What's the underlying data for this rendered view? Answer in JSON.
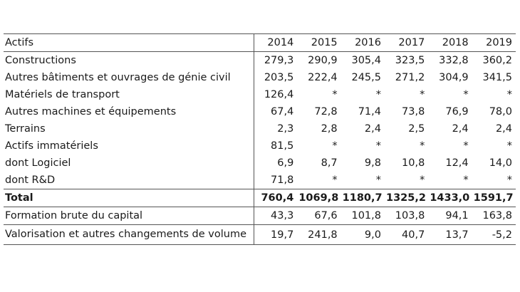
{
  "table": {
    "header": {
      "label": "Actifs",
      "years": [
        "2014",
        "2015",
        "2016",
        "2017",
        "2018",
        "2019"
      ]
    },
    "rows": [
      {
        "label": "Constructions",
        "values": [
          "279,3",
          "290,9",
          "305,4",
          "323,5",
          "332,8",
          "360,2"
        ]
      },
      {
        "label": "Autres bâtiments et ouvrages de génie civil",
        "values": [
          "203,5",
          "222,4",
          "245,5",
          "271,2",
          "304,9",
          "341,5"
        ]
      },
      {
        "label": "Matériels de transport",
        "values": [
          "126,4",
          "*",
          "*",
          "*",
          "*",
          "*"
        ]
      },
      {
        "label": "Autres machines et équipements",
        "values": [
          "67,4",
          "72,8",
          "71,4",
          "73,8",
          "76,9",
          "78,0"
        ]
      },
      {
        "label": "Terrains",
        "values": [
          "2,3",
          "2,8",
          "2,4",
          "2,5",
          "2,4",
          "2,4"
        ]
      },
      {
        "label": "Actifs immatériels",
        "values": [
          "81,5",
          "*",
          "*",
          "*",
          "*",
          "*"
        ]
      },
      {
        "label": "dont Logiciel",
        "values": [
          "6,9",
          "8,7",
          "9,8",
          "10,8",
          "12,4",
          "14,0"
        ]
      },
      {
        "label": "dont R&D",
        "values": [
          "71,8",
          "*",
          "*",
          "*",
          "*",
          "*"
        ]
      }
    ],
    "total": {
      "label": "Total",
      "values": [
        "760,4",
        "1069,8",
        "1180,7",
        "1325,2",
        "1433,0",
        "1591,7"
      ]
    },
    "fbc": {
      "label": "Formation brute du capital",
      "values": [
        "43,3",
        "67,6",
        "101,8",
        "103,8",
        "94,1",
        "163,8"
      ]
    },
    "valorisation": {
      "label": "Valorisation et autres changements de volume",
      "values": [
        "19,7",
        "241,8",
        "9,0",
        "40,7",
        "13,7",
        "-5,2"
      ]
    }
  }
}
